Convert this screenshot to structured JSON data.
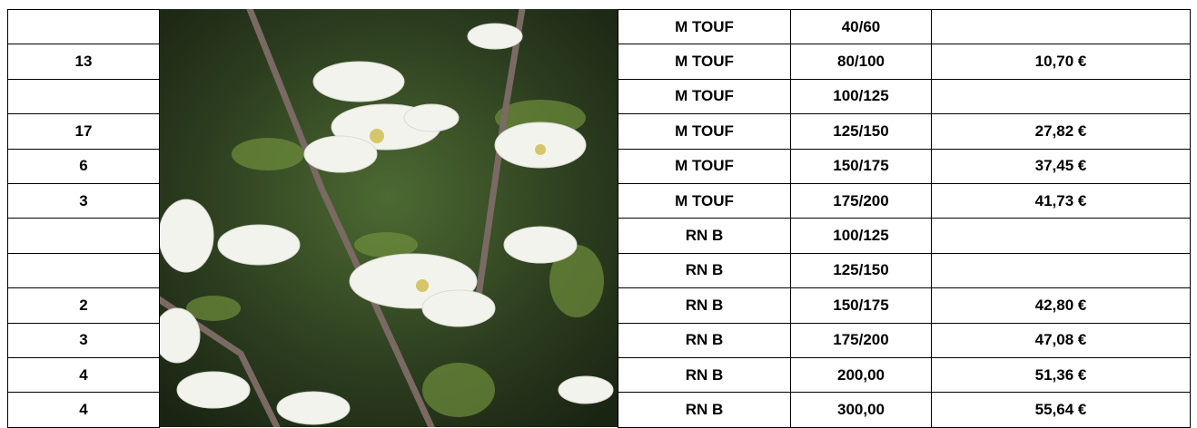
{
  "table": {
    "rows": [
      {
        "type": "M TOUF",
        "size": "40/60"
      },
      {
        "qty": "13",
        "type": "M TOUF",
        "size": "80/100",
        "price": "10,70 €"
      },
      {
        "type": "M TOUF",
        "size": "100/125"
      },
      {
        "qty": "17",
        "type": "M TOUF",
        "size": "125/150",
        "price": "27,82 €"
      },
      {
        "qty": "6",
        "type": "M TOUF",
        "size": "150/175",
        "price": "37,45 €"
      },
      {
        "qty": "3",
        "type": "M TOUF",
        "size": "175/200",
        "price": "41,73 €"
      },
      {
        "type": "RN B",
        "size": "100/125"
      },
      {
        "type": "RN B",
        "size": "125/150"
      },
      {
        "qty": "2",
        "type": "RN B",
        "size": "150/175",
        "price": "42,80 €"
      },
      {
        "qty": "3",
        "type": "RN B",
        "size": "175/200",
        "price": "47,08 €"
      },
      {
        "qty": "4",
        "type": "RN B",
        "size": "200,00",
        "price": "51,36 €"
      },
      {
        "qty": "4",
        "type": "RN B",
        "size": "300,00",
        "price": "55,64 €"
      }
    ]
  }
}
